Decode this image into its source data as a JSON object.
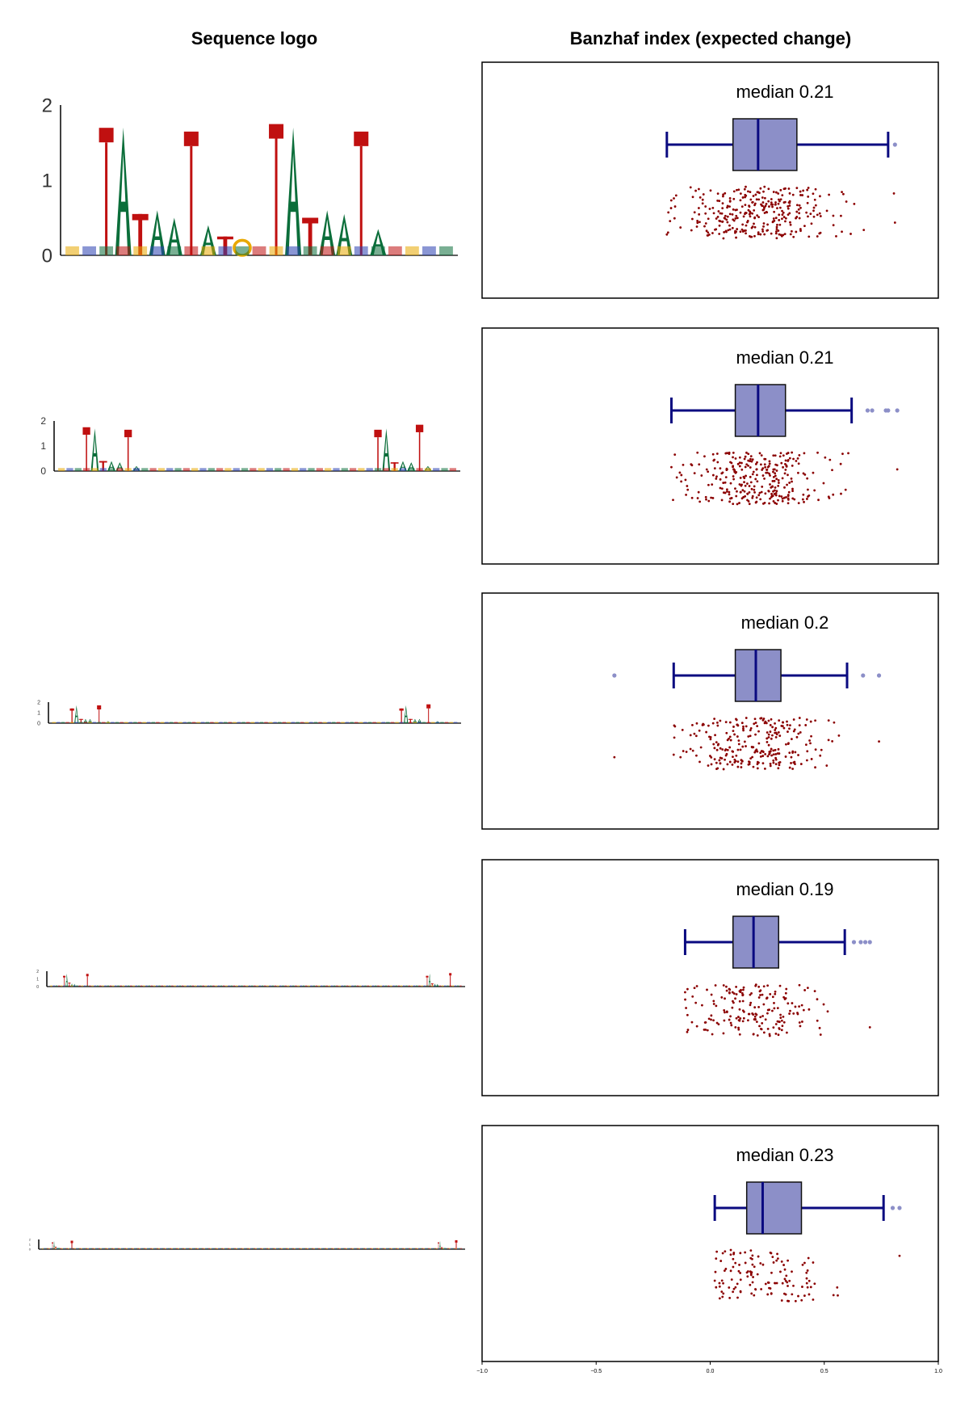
{
  "headers": {
    "left": "Sequence logo",
    "right": "Banzhaf index (expected change)"
  },
  "colors": {
    "box_fill": "#8c8fc8",
    "box_line": "#0a0a80",
    "whisker": "#0a0a80",
    "outlier": "#8c8fc8",
    "points": "#8b0000",
    "logo_A": "#0b6e3a",
    "logo_C": "#2a40b0",
    "logo_G": "#e8a800",
    "logo_T": "#c01010",
    "logo_stem": "#c01010"
  },
  "chart_data": {
    "type": "boxplot",
    "xlim": [
      -1.0,
      1.0
    ],
    "xticks": [
      -1.0,
      -0.5,
      0.0,
      0.5,
      1.0
    ],
    "xtick_labels": [
      "−1.0",
      "−0.5",
      "0.0",
      "0.5",
      "1.0"
    ],
    "rows": [
      {
        "median_label": "median 0.21",
        "q1": 0.1,
        "median": 0.21,
        "q3": 0.38,
        "whisker_low": -0.19,
        "whisker_high": 0.78,
        "outliers": [
          0.81
        ],
        "jitter": {
          "n": 320,
          "lo": -0.19,
          "hi": 0.81,
          "center": 0.21,
          "spread": 0.17,
          "seed": 11
        },
        "logo": {
          "yticks": [
            "0",
            "1",
            "2"
          ],
          "tick_font": 24,
          "positions": 23,
          "tall": [
            {
              "pos": 2,
              "letter": "stem",
              "h": 1.6
            },
            {
              "pos": 3,
              "letter": "A",
              "h": 1.7
            },
            {
              "pos": 4,
              "letter": "T",
              "h": 0.55
            },
            {
              "pos": 5,
              "letter": "A",
              "h": 0.6
            },
            {
              "pos": 6,
              "letter": "A",
              "h": 0.5
            },
            {
              "pos": 7,
              "letter": "stem",
              "h": 1.55
            },
            {
              "pos": 8,
              "letter": "A",
              "h": 0.4
            },
            {
              "pos": 9,
              "letter": "T",
              "h": 0.25
            },
            {
              "pos": 10,
              "letter": "G",
              "h": 0.2
            },
            {
              "pos": 12,
              "letter": "stem",
              "h": 1.65
            },
            {
              "pos": 13,
              "letter": "A",
              "h": 1.7
            },
            {
              "pos": 14,
              "letter": "T",
              "h": 0.5
            },
            {
              "pos": 15,
              "letter": "A",
              "h": 0.6
            },
            {
              "pos": 16,
              "letter": "A",
              "h": 0.55
            },
            {
              "pos": 17,
              "letter": "stem",
              "h": 1.55
            },
            {
              "pos": 18,
              "letter": "A",
              "h": 0.35
            }
          ]
        }
      },
      {
        "median_label": "median 0.21",
        "q1": 0.11,
        "median": 0.21,
        "q3": 0.33,
        "whisker_low": -0.17,
        "whisker_high": 0.62,
        "outliers": [
          0.69,
          0.71,
          0.77,
          0.78,
          0.82
        ],
        "jitter": {
          "n": 300,
          "lo": -0.17,
          "hi": 0.82,
          "center": 0.21,
          "spread": 0.15,
          "seed": 23
        },
        "logo": {
          "yticks": [
            "0",
            "1",
            "2"
          ],
          "tick_font": 12,
          "positions": 48,
          "tall": [
            {
              "pos": 3,
              "letter": "stem",
              "h": 1.6
            },
            {
              "pos": 4,
              "letter": "A",
              "h": 1.7
            },
            {
              "pos": 5,
              "letter": "T",
              "h": 0.4
            },
            {
              "pos": 6,
              "letter": "A",
              "h": 0.4
            },
            {
              "pos": 7,
              "letter": "A",
              "h": 0.35
            },
            {
              "pos": 8,
              "letter": "stem",
              "h": 1.5
            },
            {
              "pos": 9,
              "letter": "A",
              "h": 0.2
            },
            {
              "pos": 38,
              "letter": "stem",
              "h": 1.5
            },
            {
              "pos": 39,
              "letter": "A",
              "h": 1.7
            },
            {
              "pos": 40,
              "letter": "T",
              "h": 0.35
            },
            {
              "pos": 41,
              "letter": "A",
              "h": 0.4
            },
            {
              "pos": 42,
              "letter": "A",
              "h": 0.35
            },
            {
              "pos": 43,
              "letter": "stem",
              "h": 1.7
            },
            {
              "pos": 44,
              "letter": "A",
              "h": 0.2
            }
          ]
        }
      },
      {
        "median_label": "median 0.2",
        "q1": 0.11,
        "median": 0.2,
        "q3": 0.31,
        "whisker_low": -0.16,
        "whisker_high": 0.6,
        "outliers": [
          -0.42,
          0.67,
          0.74
        ],
        "jitter": {
          "n": 260,
          "lo": -0.16,
          "hi": 0.74,
          "center": 0.2,
          "spread": 0.15,
          "seed": 37
        },
        "extra_points": [
          -0.42
        ],
        "logo": {
          "yticks": [
            "0",
            "1",
            "2"
          ],
          "tick_font": 7,
          "positions": 90,
          "tall": [
            {
              "pos": 4,
              "letter": "T",
              "h": 1.4
            },
            {
              "pos": 5,
              "letter": "A",
              "h": 1.7
            },
            {
              "pos": 6,
              "letter": "T",
              "h": 0.4
            },
            {
              "pos": 7,
              "letter": "A",
              "h": 0.4
            },
            {
              "pos": 8,
              "letter": "A",
              "h": 0.4
            },
            {
              "pos": 10,
              "letter": "stem",
              "h": 1.5
            },
            {
              "pos": 12,
              "letter": "A",
              "h": 0.2
            },
            {
              "pos": 77,
              "letter": "T",
              "h": 1.4
            },
            {
              "pos": 78,
              "letter": "A",
              "h": 1.7
            },
            {
              "pos": 79,
              "letter": "T",
              "h": 0.4
            },
            {
              "pos": 80,
              "letter": "A",
              "h": 0.4
            },
            {
              "pos": 81,
              "letter": "A",
              "h": 0.4
            },
            {
              "pos": 83,
              "letter": "stem",
              "h": 1.6
            },
            {
              "pos": 85,
              "letter": "A",
              "h": 0.2
            }
          ]
        }
      },
      {
        "median_label": "median 0.19",
        "q1": 0.1,
        "median": 0.19,
        "q3": 0.3,
        "whisker_low": -0.11,
        "whisker_high": 0.59,
        "outliers": [
          0.63,
          0.66,
          0.68,
          0.7
        ],
        "jitter": {
          "n": 190,
          "lo": -0.11,
          "hi": 0.7,
          "center": 0.19,
          "spread": 0.15,
          "seed": 53
        },
        "logo": {
          "yticks": [
            "0",
            "1",
            "2"
          ],
          "tick_font": 5,
          "positions": 160,
          "tall": [
            {
              "pos": 5,
              "letter": "T",
              "h": 1.4
            },
            {
              "pos": 6,
              "letter": "A",
              "h": 1.7
            },
            {
              "pos": 7,
              "letter": "T",
              "h": 0.5
            },
            {
              "pos": 8,
              "letter": "A",
              "h": 0.4
            },
            {
              "pos": 9,
              "letter": "A",
              "h": 0.35
            },
            {
              "pos": 14,
              "letter": "stem",
              "h": 1.5
            },
            {
              "pos": 146,
              "letter": "T",
              "h": 1.4
            },
            {
              "pos": 147,
              "letter": "A",
              "h": 1.7
            },
            {
              "pos": 148,
              "letter": "T",
              "h": 0.4
            },
            {
              "pos": 149,
              "letter": "A",
              "h": 0.4
            },
            {
              "pos": 150,
              "letter": "A",
              "h": 0.35
            },
            {
              "pos": 155,
              "letter": "stem",
              "h": 1.6
            }
          ]
        }
      },
      {
        "median_label": "median 0.23",
        "q1": 0.16,
        "median": 0.23,
        "q3": 0.4,
        "whisker_low": 0.02,
        "whisker_high": 0.76,
        "outliers": [
          0.8,
          0.83
        ],
        "jitter": {
          "n": 130,
          "lo": 0.02,
          "hi": 0.83,
          "center": 0.23,
          "spread": 0.15,
          "seed": 71
        },
        "logo": {
          "yticks": [
            "0",
            "1",
            "2"
          ],
          "tick_font": 4,
          "positions": 260,
          "tall": [
            {
              "pos": 6,
              "letter": "T",
              "h": 1.4
            },
            {
              "pos": 7,
              "letter": "A",
              "h": 1.7
            },
            {
              "pos": 8,
              "letter": "T",
              "h": 0.5
            },
            {
              "pos": 9,
              "letter": "A",
              "h": 0.4
            },
            {
              "pos": 10,
              "letter": "A",
              "h": 0.35
            },
            {
              "pos": 18,
              "letter": "stem",
              "h": 1.5
            },
            {
              "pos": 245,
              "letter": "T",
              "h": 1.4
            },
            {
              "pos": 246,
              "letter": "A",
              "h": 1.7
            },
            {
              "pos": 247,
              "letter": "T",
              "h": 0.4
            },
            {
              "pos": 248,
              "letter": "A",
              "h": 0.4
            },
            {
              "pos": 249,
              "letter": "A",
              "h": 0.35
            },
            {
              "pos": 256,
              "letter": "stem",
              "h": 1.6
            }
          ]
        }
      }
    ]
  }
}
